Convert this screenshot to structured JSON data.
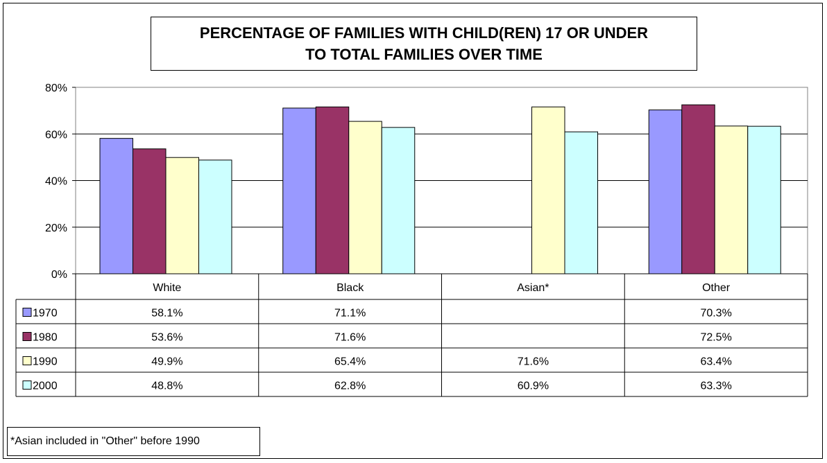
{
  "title_lines": [
    "PERCENTAGE OF FAMILIES WITH CHILD(REN) 17 OR UNDER",
    "TO TOTAL FAMILIES OVER TIME"
  ],
  "footnote": "*Asian included in \"Other\" before 1990",
  "chart_data": {
    "type": "bar",
    "title": "PERCENTAGE OF FAMILIES WITH CHILD(REN) 17 OR UNDER TO TOTAL FAMILIES OVER TIME",
    "categories": [
      "White",
      "Black",
      "Asian*",
      "Other"
    ],
    "series": [
      {
        "name": "1970",
        "color": "#9999ff",
        "values": [
          58.1,
          71.1,
          null,
          70.3
        ],
        "labels": [
          "58.1%",
          "71.1%",
          "",
          "70.3%"
        ]
      },
      {
        "name": "1980",
        "color": "#993366",
        "values": [
          53.6,
          71.6,
          null,
          72.5
        ],
        "labels": [
          "53.6%",
          "71.6%",
          "",
          "72.5%"
        ]
      },
      {
        "name": "1990",
        "color": "#ffffcc",
        "values": [
          49.9,
          65.4,
          71.6,
          63.4
        ],
        "labels": [
          "49.9%",
          "65.4%",
          "71.6%",
          "63.4%"
        ]
      },
      {
        "name": "2000",
        "color": "#ccffff",
        "values": [
          48.8,
          62.8,
          60.9,
          63.3
        ],
        "labels": [
          "48.8%",
          "62.8%",
          "60.9%",
          "63.3%"
        ]
      }
    ],
    "yticks": [
      "0%",
      "20%",
      "40%",
      "60%",
      "80%"
    ],
    "ylim": [
      0,
      80
    ],
    "grid": true,
    "legend": "data-table"
  }
}
